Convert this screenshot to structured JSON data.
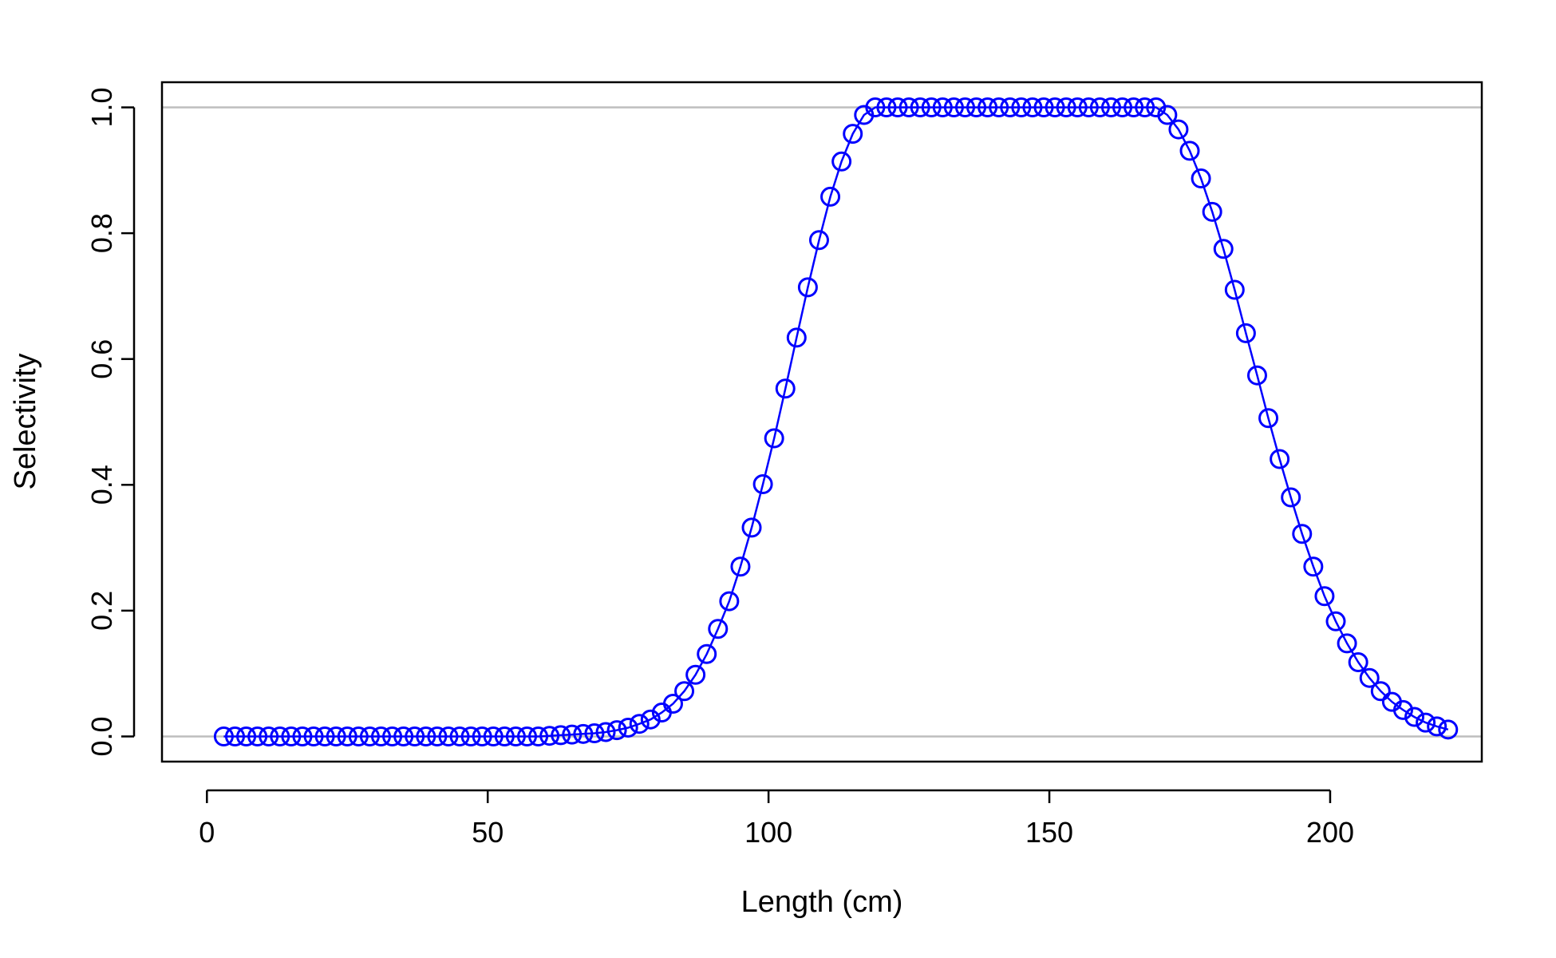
{
  "chart_data": {
    "type": "line",
    "title": "",
    "xlabel": "Length (cm)",
    "ylabel": "Selectivity",
    "xlim": [
      -8,
      227
    ],
    "ylim": [
      -0.04,
      1.04
    ],
    "xticks": [
      0,
      50,
      100,
      150,
      200
    ],
    "xtick_labels": [
      "0",
      "50",
      "100",
      "150",
      "200"
    ],
    "yticks": [
      0.0,
      0.2,
      0.4,
      0.6,
      0.8,
      1.0
    ],
    "ytick_labels": [
      "0.0",
      "0.2",
      "0.4",
      "0.6",
      "0.8",
      "1.0"
    ],
    "reference_lines": [
      0,
      1
    ],
    "reference_line_color": "#bebebe",
    "series_color": "#0000ff",
    "grid": false,
    "marker": "open-circle",
    "series": [
      {
        "x": [
          3,
          5,
          7,
          9,
          11,
          13,
          15,
          17,
          19,
          21,
          23,
          25,
          27,
          29,
          31,
          33,
          35,
          37,
          39,
          41,
          43,
          45,
          47,
          49,
          51,
          53,
          55,
          57,
          59,
          61,
          63,
          65,
          67,
          69,
          71,
          73,
          75,
          77,
          79,
          81,
          83,
          85,
          87,
          89,
          91,
          93,
          95,
          97,
          99,
          101,
          103,
          105,
          107,
          109,
          111,
          113,
          115,
          117,
          119,
          121,
          123,
          125,
          127,
          129,
          131,
          133,
          135,
          137,
          139,
          141,
          143,
          145,
          147,
          149,
          151,
          153,
          155,
          157,
          159,
          161,
          163,
          165,
          167,
          169,
          171,
          173,
          175,
          177,
          179,
          181,
          183,
          185,
          187,
          189,
          191,
          193,
          195,
          197,
          199,
          201,
          203,
          205,
          207,
          209,
          211,
          213,
          215,
          217,
          219,
          221
        ],
        "values": [
          0,
          0,
          0,
          0,
          0,
          0,
          0,
          0,
          0,
          0,
          0,
          0,
          0,
          0,
          0,
          0,
          0,
          0,
          0,
          0,
          0,
          0,
          0,
          0,
          0,
          0,
          0,
          0,
          0,
          0.001,
          0.002,
          0.003,
          0.004,
          0.005,
          0.007,
          0.01,
          0.014,
          0.02,
          0.027,
          0.038,
          0.052,
          0.072,
          0.098,
          0.131,
          0.171,
          0.215,
          0.27,
          0.332,
          0.401,
          0.474,
          0.553,
          0.634,
          0.714,
          0.789,
          0.858,
          0.914,
          0.958,
          0.988,
          1,
          1,
          1,
          1,
          1,
          1,
          1,
          1,
          1,
          1,
          1,
          1,
          1,
          1,
          1,
          1,
          1,
          1,
          1,
          1,
          1,
          1,
          1,
          1,
          1,
          1,
          0.988,
          0.965,
          0.931,
          0.887,
          0.834,
          0.775,
          0.71,
          0.641,
          0.574,
          0.506,
          0.441,
          0.38,
          0.322,
          0.27,
          0.223,
          0.183,
          0.148,
          0.118,
          0.093,
          0.072,
          0.055,
          0.042,
          0.031,
          0.022,
          0.016,
          0.011
        ]
      }
    ]
  }
}
